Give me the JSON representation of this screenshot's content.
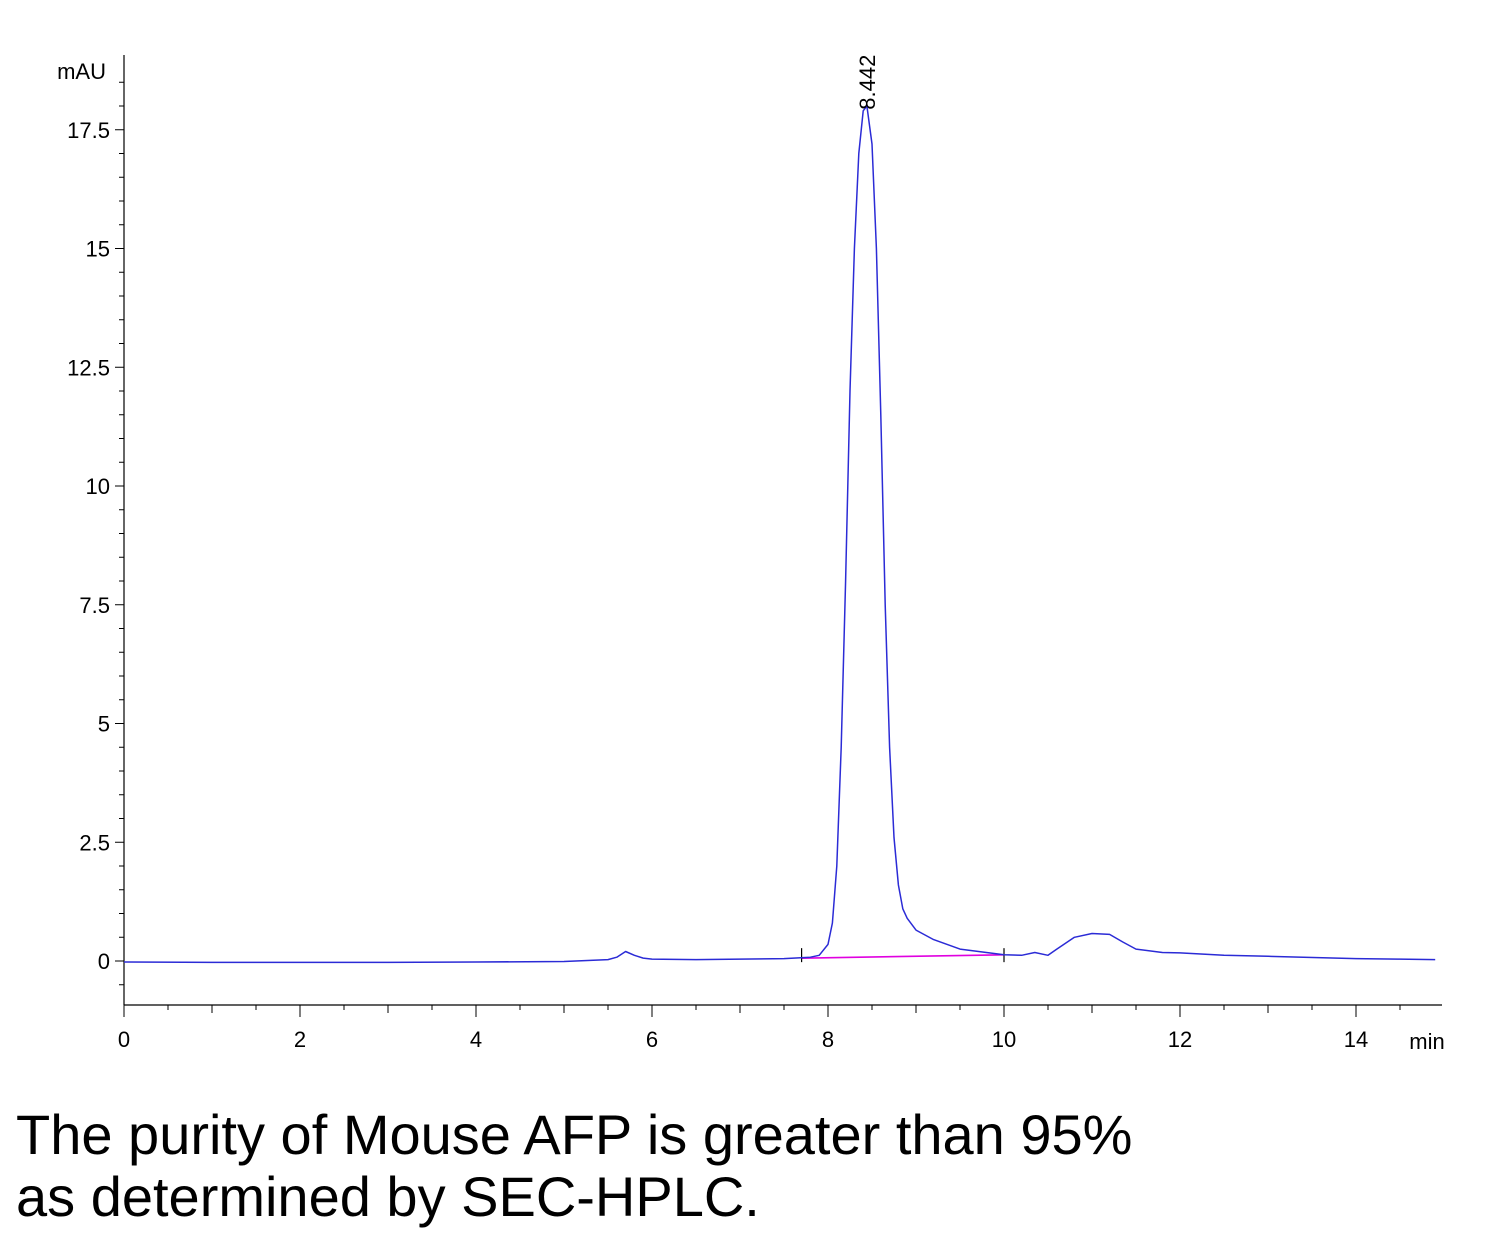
{
  "chart_data": {
    "type": "line",
    "ylabel": "mAU",
    "xlabel": "min",
    "xlim": [
      0,
      15
    ],
    "ylim": [
      -1.5,
      19
    ],
    "x_ticks": [
      "0",
      "2",
      "4",
      "6",
      "8",
      "10",
      "12",
      "14"
    ],
    "y_ticks": [
      "0",
      "2.5",
      "5",
      "7.5",
      "10",
      "12.5",
      "15",
      "17.5"
    ],
    "peak_annotation": {
      "label": "8.442",
      "x": 8.442,
      "y": 17.9
    },
    "series": [
      {
        "color": "#2b2bd6",
        "x": [
          0,
          1,
          2,
          3,
          4,
          5,
          5.5,
          5.6,
          5.7,
          5.8,
          5.9,
          6.0,
          6.5,
          7.0,
          7.5,
          7.8,
          7.9,
          8.0,
          8.05,
          8.1,
          8.15,
          8.2,
          8.25,
          8.3,
          8.35,
          8.4,
          8.442,
          8.5,
          8.55,
          8.6,
          8.65,
          8.7,
          8.75,
          8.8,
          8.85,
          8.9,
          9.0,
          9.2,
          9.5,
          10.0,
          10.2,
          10.35,
          10.5,
          10.6,
          10.8,
          11.0,
          11.2,
          11.35,
          11.5,
          11.8,
          12.0,
          12.5,
          13.0,
          14.0,
          14.5,
          14.9
        ],
        "y": [
          -0.02,
          -0.03,
          -0.03,
          -0.03,
          -0.02,
          -0.01,
          0.03,
          0.08,
          0.2,
          0.12,
          0.06,
          0.04,
          0.03,
          0.04,
          0.05,
          0.08,
          0.12,
          0.35,
          0.8,
          2.0,
          4.5,
          8.0,
          12.0,
          15.0,
          17.0,
          17.9,
          18.0,
          17.2,
          15.0,
          11.5,
          7.5,
          4.5,
          2.6,
          1.6,
          1.1,
          0.9,
          0.65,
          0.45,
          0.25,
          0.13,
          0.12,
          0.18,
          0.12,
          0.25,
          0.5,
          0.58,
          0.56,
          0.4,
          0.25,
          0.18,
          0.17,
          0.12,
          0.1,
          0.05,
          0.04,
          0.03
        ]
      }
    ],
    "baseline": {
      "color": "#e000e0",
      "x": [
        7.7,
        10.0
      ],
      "y": [
        0.06,
        0.13
      ]
    },
    "markers": [
      7.7,
      10.0
    ]
  },
  "caption": {
    "line1": "The purity of Mouse AFP is greater than 95%",
    "line2": "as determined by SEC-HPLC."
  }
}
